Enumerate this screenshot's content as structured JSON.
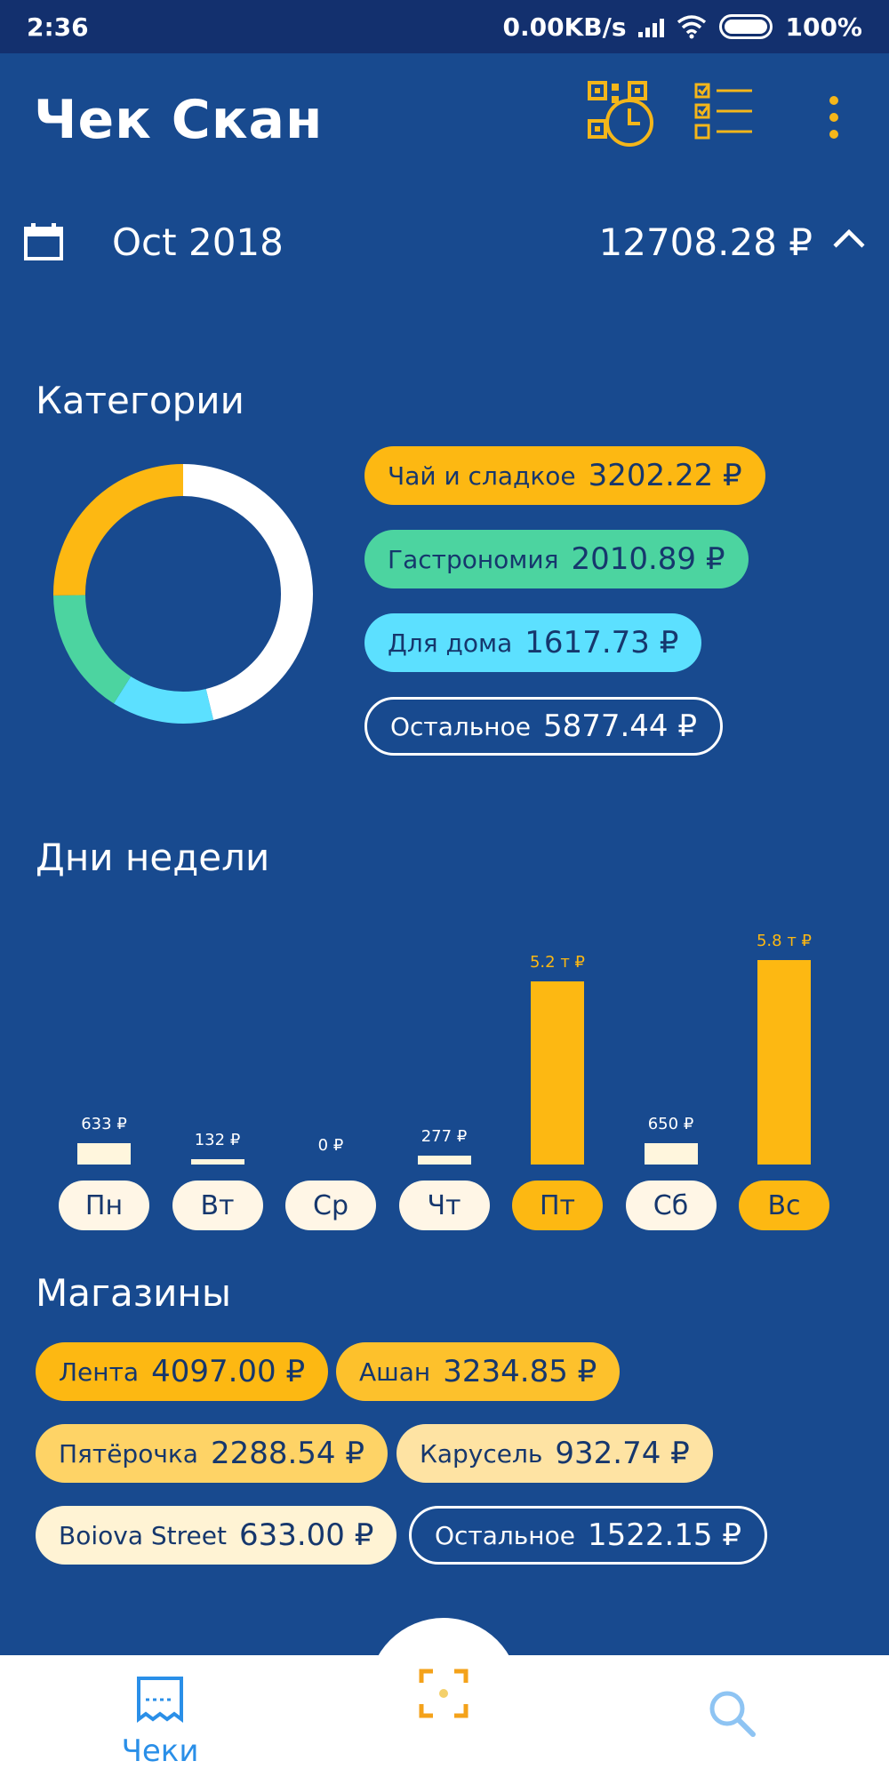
{
  "status_bar": {
    "time": "2:36",
    "network_speed": "0.00KB/s",
    "battery": "100%"
  },
  "app_bar": {
    "title": "Чек Скан",
    "icons": [
      "qr-history-icon",
      "checklist-icon",
      "more-vert-icon"
    ]
  },
  "period": {
    "label": "Oct 2018",
    "total": "12708.28 ₽",
    "icons": [
      "calendar-icon",
      "chevron-up-icon"
    ]
  },
  "categories": {
    "title": "Категории",
    "items": [
      {
        "name": "Чай и сладкое",
        "amount": "3202.22 ₽",
        "value": 3202.22,
        "color": "#fdb812"
      },
      {
        "name": "Гастрономия",
        "amount": "2010.89 ₽",
        "value": 2010.89,
        "color": "#4cd4a0"
      },
      {
        "name": "Для дома",
        "amount": "1617.73 ₽",
        "value": 1617.73,
        "color": "#5ce0ff"
      },
      {
        "name": "Остальное",
        "amount": "5877.44 ₽",
        "value": 5877.44,
        "color": "#ffffff"
      }
    ]
  },
  "weekdays": {
    "title": "Дни недели",
    "days": [
      {
        "label": "Пн",
        "amount_label": "633 ₽",
        "value": 633,
        "highlight": false
      },
      {
        "label": "Вт",
        "amount_label": "132 ₽",
        "value": 132,
        "highlight": false
      },
      {
        "label": "Ср",
        "amount_label": "0 ₽",
        "value": 0,
        "highlight": false
      },
      {
        "label": "Чт",
        "amount_label": "277 ₽",
        "value": 277,
        "highlight": false
      },
      {
        "label": "Пт",
        "amount_label": "5.2 т ₽",
        "value": 5200,
        "highlight": true
      },
      {
        "label": "Сб",
        "amount_label": "650 ₽",
        "value": 650,
        "highlight": false
      },
      {
        "label": "Вс",
        "amount_label": "5.8 т ₽",
        "value": 5800,
        "highlight": true
      }
    ],
    "colors": {
      "highlight": "#fdb812",
      "normal": "#fff6dd"
    }
  },
  "stores": {
    "title": "Магазины",
    "items": [
      {
        "name": "Лента",
        "amount": "4097.00 ₽",
        "color": "#fdb812"
      },
      {
        "name": "Ашан",
        "amount": "3234.85 ₽",
        "color": "#fdc12c"
      },
      {
        "name": "Пятёрочка",
        "amount": "2288.54 ₽",
        "color": "#fed366"
      },
      {
        "name": "Карусель",
        "amount": "932.74 ₽",
        "color": "#fee3a3"
      },
      {
        "name": "Boiova Street",
        "amount": "633.00 ₽",
        "color": "#fff3d4"
      },
      {
        "name": "Остальное",
        "amount": "1522.15 ₽",
        "color": "outline"
      }
    ]
  },
  "bottom_nav": {
    "receipts_label": "Чеки",
    "icons": [
      "receipt-icon",
      "scan-icon",
      "search-icon"
    ]
  }
}
